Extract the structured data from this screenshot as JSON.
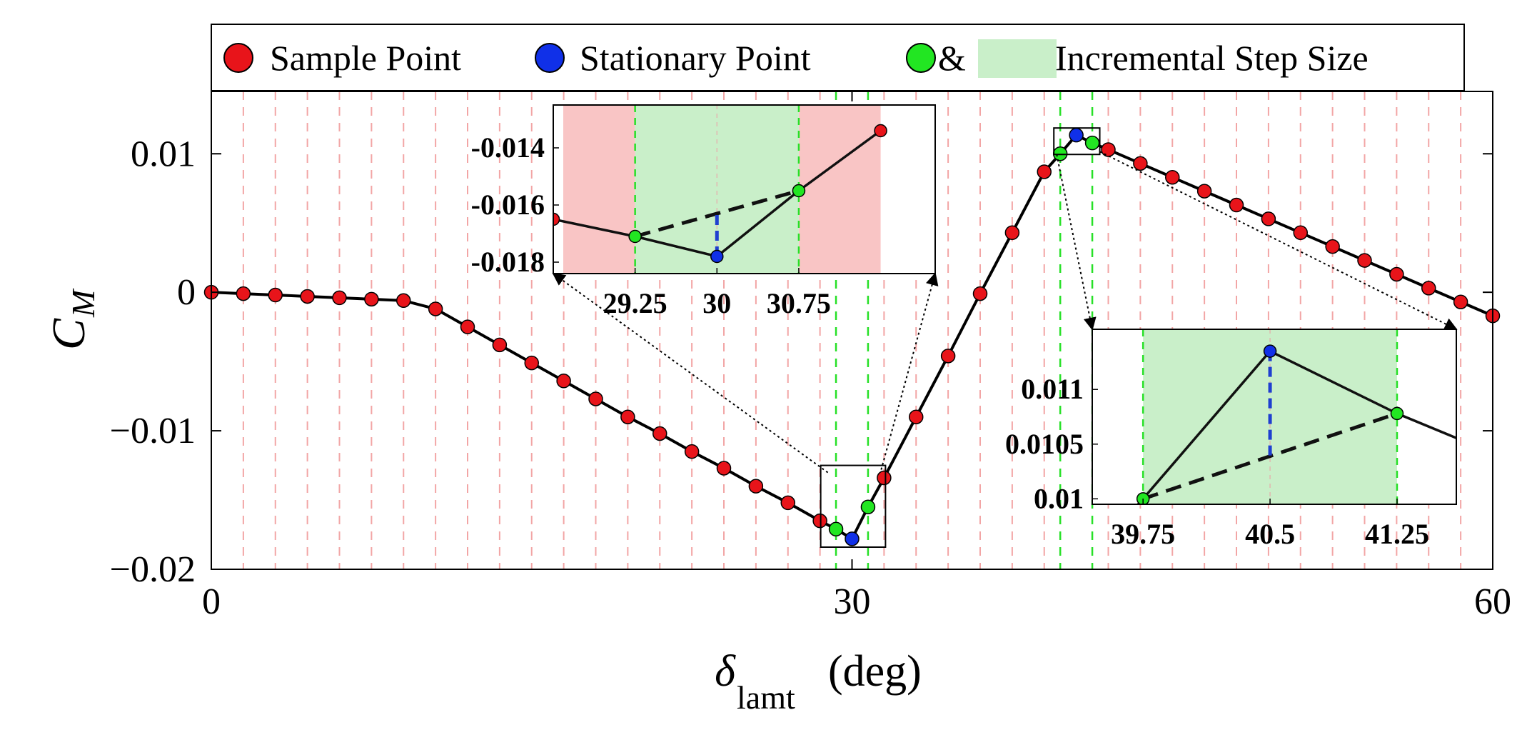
{
  "chart_data": {
    "type": "scatter",
    "xlabel": "δ",
    "xlabel_subscript": "lamt",
    "xlabel_unit": "(deg)",
    "ylabel": "C",
    "ylabel_subscript": "M",
    "xlim": [
      0,
      60
    ],
    "ylim": [
      -0.02,
      0.0145
    ],
    "xticks": [
      0,
      30,
      60
    ],
    "xtick_labels": [
      "0",
      "30",
      "60"
    ],
    "yticks": [
      -0.02,
      -0.01,
      0,
      0.01
    ],
    "ytick_labels": [
      "−0.02",
      "−0.01",
      "0",
      "0.01"
    ],
    "legend": {
      "placement": "top",
      "sample_label": "Sample Point",
      "stationary_label": "Stationary Point",
      "amp": "&",
      "step_label": "Incremental Step Size"
    },
    "colors": {
      "sample": "#e8141a",
      "stationary": "#1030e8",
      "step_point": "#22e622",
      "step_fill": "#c9efc9",
      "inactive_fill": "#f9c5c5",
      "red_grid": "#f2a5a5",
      "green_grid": "#27e027",
      "line": "#000000",
      "blue_marker": "#1f3fd0"
    },
    "sample_grid_x": [
      1.5,
      3,
      4.5,
      6,
      7.5,
      9,
      10.5,
      12,
      13.5,
      15,
      16.5,
      18,
      19.5,
      21,
      22.5,
      24,
      25.5,
      27,
      28.5,
      31.5,
      33,
      34.5,
      36,
      37.5,
      39,
      42,
      43.5,
      45,
      46.5,
      48,
      49.5,
      51,
      52.5,
      54,
      55.5,
      57,
      58.5
    ],
    "step_grid_x": [
      29.25,
      30.75,
      39.75,
      41.25
    ],
    "sample_points": {
      "x": [
        0,
        1.5,
        3,
        4.5,
        6,
        7.5,
        9,
        10.5,
        12,
        13.5,
        15,
        16.5,
        18,
        19.5,
        21,
        22.5,
        24,
        25.5,
        27,
        28.5,
        31.5,
        33,
        34.5,
        36,
        37.5,
        39,
        42,
        43.5,
        45,
        46.5,
        48,
        49.5,
        51,
        52.5,
        54,
        55.5,
        57,
        58.5,
        60
      ],
      "y": [
        0,
        -0.0001,
        -0.0002,
        -0.0003,
        -0.0004,
        -0.0005,
        -0.0006,
        -0.0012,
        -0.0025,
        -0.0038,
        -0.0051,
        -0.0064,
        -0.0077,
        -0.009,
        -0.0102,
        -0.0115,
        -0.0127,
        -0.014,
        -0.0152,
        -0.0165,
        -0.0134,
        -0.009,
        -0.0046,
        -0.0001,
        0.0043,
        0.0087,
        0.0103,
        0.0093,
        0.0083,
        0.0073,
        0.0063,
        0.0053,
        0.0043,
        0.0033,
        0.0023,
        0.0013,
        0.0003,
        -0.0007,
        -0.0017
      ]
    },
    "step_points": {
      "x": [
        29.25,
        30.75,
        39.75,
        41.25
      ],
      "y": [
        -0.0171,
        -0.0155,
        0.01,
        0.01078
      ]
    },
    "stationary_points": {
      "x": [
        30,
        40.5
      ],
      "y": [
        -0.0178,
        0.01135
      ]
    },
    "insets": [
      {
        "xlim": [
          28.5,
          32
        ],
        "ylim": [
          -0.0184,
          -0.0125
        ],
        "xticks": [
          29.25,
          30,
          30.75
        ],
        "xtick_labels": [
          "29.25",
          "30",
          "30.75"
        ],
        "yticks": [
          -0.014,
          -0.016,
          -0.018
        ],
        "ytick_labels": [
          "-0.014",
          "-0.016",
          "-0.018"
        ],
        "shade_left": [
          28.5,
          29.25
        ],
        "shade_step": [
          29.25,
          30.75
        ],
        "shade_right": [
          30.75,
          31.5
        ],
        "step_points": {
          "x": [
            29.25,
            30.75
          ],
          "y": [
            -0.0171,
            -0.0155
          ]
        },
        "stationary_point": {
          "x": 30,
          "y": -0.0178
        },
        "dashed_interp_y": -0.0163,
        "red_points": {
          "x": [
            28.5,
            31.5
          ],
          "y": [
            -0.0165,
            -0.0134
          ]
        }
      },
      {
        "xlim": [
          39.45,
          41.6
        ],
        "ylim": [
          0.00995,
          0.01155
        ],
        "xticks": [
          39.75,
          40.5,
          41.25
        ],
        "xtick_labels": [
          "39.75",
          "40.5",
          "41.25"
        ],
        "yticks": [
          0.011,
          0.0105,
          0.01
        ],
        "ytick_labels": [
          "0.011",
          "0.0105",
          "0.01"
        ],
        "shade_step": [
          39.75,
          41.25
        ],
        "step_points": {
          "x": [
            39.75,
            41.25
          ],
          "y": [
            0.01,
            0.01078
          ]
        },
        "stationary_point": {
          "x": 40.5,
          "y": 0.01135
        },
        "dashed_interp_y": 0.01039
      }
    ]
  }
}
